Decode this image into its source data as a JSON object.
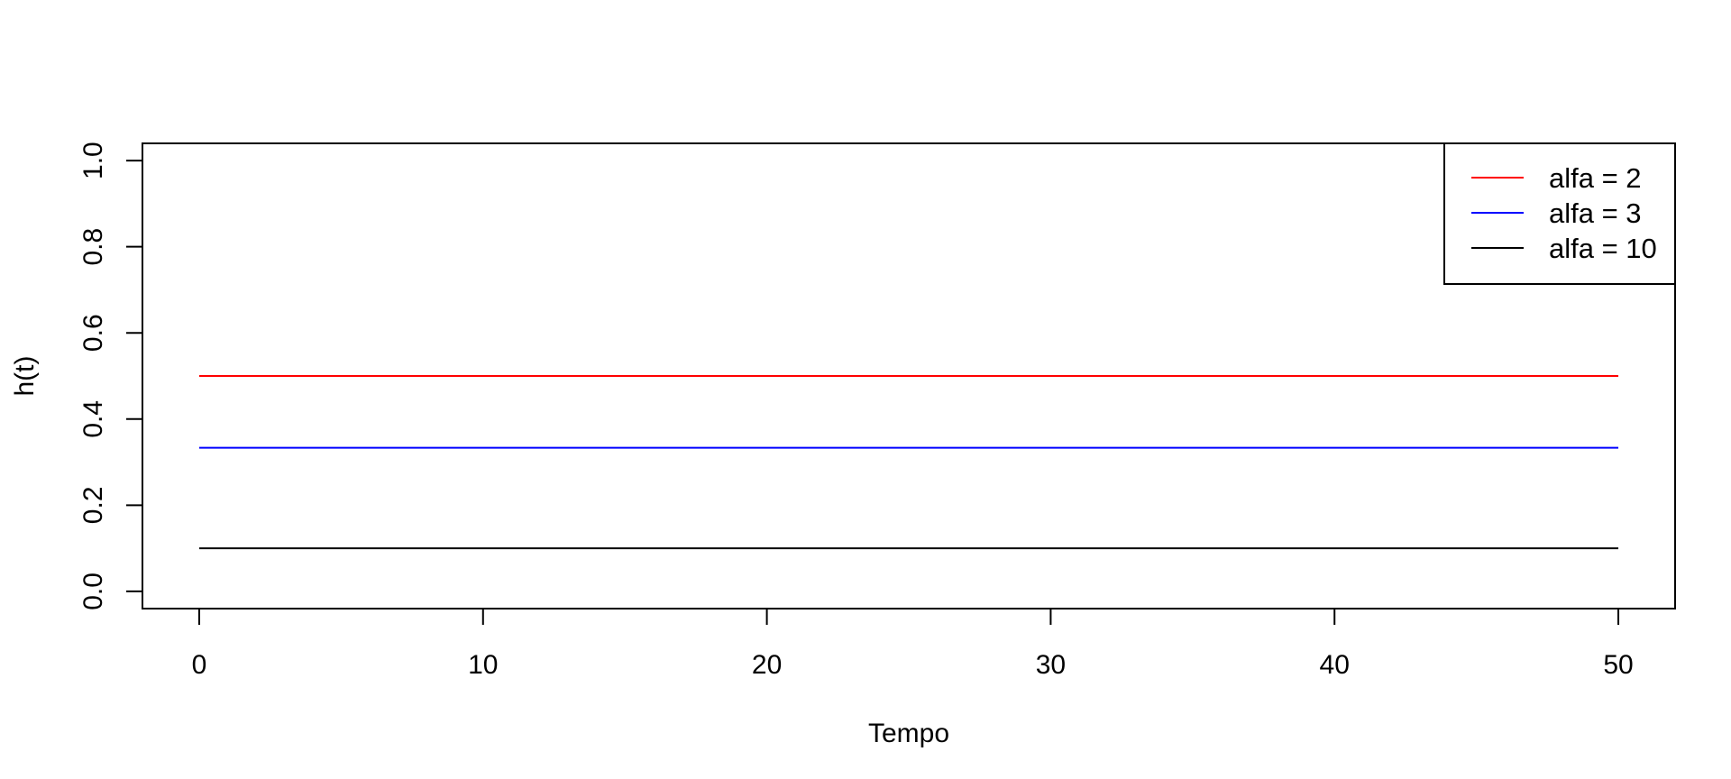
{
  "chart_data": {
    "type": "line",
    "title": "",
    "xlabel": "Tempo",
    "ylabel": "h(t)",
    "xlim": [
      -2,
      52
    ],
    "ylim": [
      -0.04,
      1.04
    ],
    "x_ticks": [
      0,
      10,
      20,
      30,
      40,
      50
    ],
    "x_tick_labels": [
      "0",
      "10",
      "20",
      "30",
      "40",
      "50"
    ],
    "y_ticks": [
      0.0,
      0.2,
      0.4,
      0.6,
      0.8,
      1.0
    ],
    "y_tick_labels": [
      "0.0",
      "0.2",
      "0.4",
      "0.6",
      "0.8",
      "1.0"
    ],
    "grid": false,
    "legend_position": "top-right",
    "series": [
      {
        "name": "alfa = 2",
        "color": "#ff0000",
        "x": [
          0,
          50
        ],
        "y": [
          0.5,
          0.5
        ]
      },
      {
        "name": "alfa = 3",
        "color": "#0000ff",
        "x": [
          0,
          50
        ],
        "y": [
          0.3333,
          0.3333
        ]
      },
      {
        "name": "alfa = 10",
        "color": "#000000",
        "x": [
          0,
          50
        ],
        "y": [
          0.1,
          0.1
        ]
      }
    ]
  }
}
